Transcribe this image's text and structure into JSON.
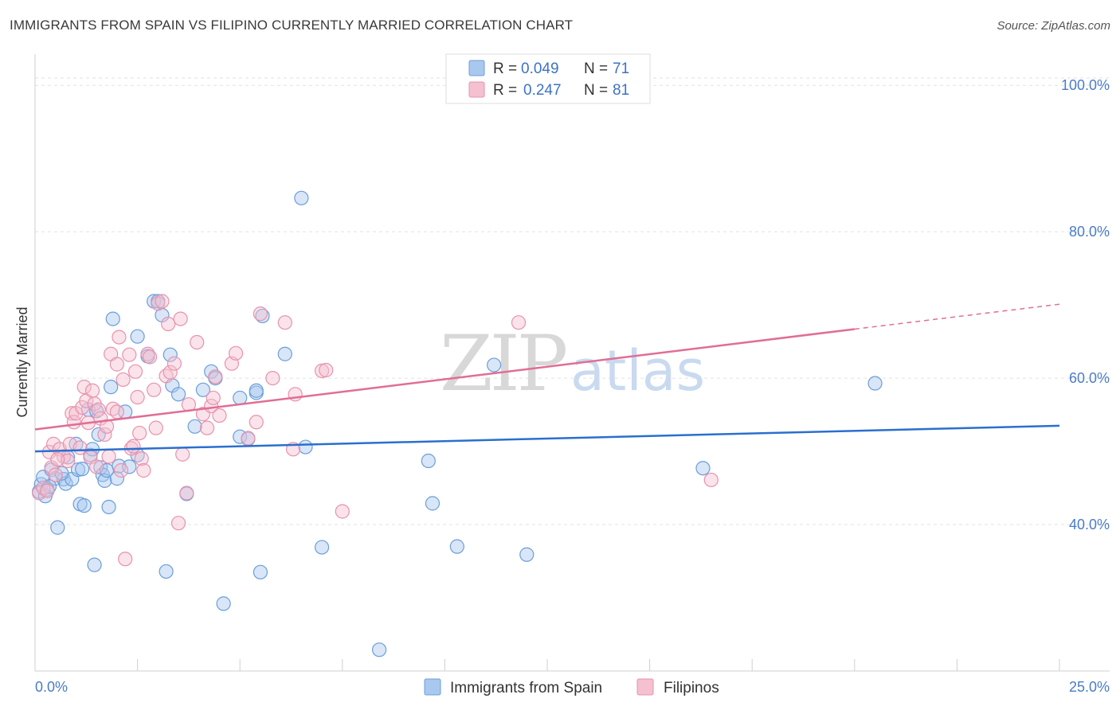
{
  "header": {
    "title": "IMMIGRANTS FROM SPAIN VS FILIPINO CURRENTLY MARRIED CORRELATION CHART",
    "source": "Source: ZipAtlas.com"
  },
  "legend": {
    "rows": [
      {
        "r_label": "R =",
        "r_value": "0.049",
        "n_label": "N =",
        "n_value": "71"
      },
      {
        "r_label": "R =",
        "r_value": "0.247",
        "n_label": "N =",
        "n_value": "81"
      }
    ]
  },
  "watermark": {
    "zip": "ZIP",
    "atlas": "atlas"
  },
  "colors": {
    "blue_fill": "#a9c8ef",
    "blue_stroke": "#6b9ed8",
    "blue_line": "#2a6fcf",
    "pink_fill": "#f5c0d0",
    "pink_stroke": "#e892ad",
    "pink_line": "#e06e95"
  },
  "chart_data": {
    "type": "scatter",
    "title": "IMMIGRANTS FROM SPAIN VS FILIPINO CURRENTLY MARRIED CORRELATION CHART",
    "xlabel": "",
    "ylabel": "Currently Married",
    "xlim": [
      0,
      25
    ],
    "ylim": [
      20,
      103.5
    ],
    "x_tick_labels": [
      "0.0%",
      "25.0%"
    ],
    "y_ticks": [
      40,
      60,
      80,
      100
    ],
    "y_tick_labels": [
      "40.0%",
      "60.0%",
      "80.0%",
      "100.0%"
    ],
    "grid": true,
    "legend_position": "top-center",
    "series": [
      {
        "name": "Immigrants from Spain",
        "color": "#6b9ed8",
        "trend": {
          "x": [
            0,
            25
          ],
          "y": [
            50.0,
            53.5
          ]
        },
        "points": [
          [
            0.1,
            44.5
          ],
          [
            0.15,
            45.5
          ],
          [
            0.2,
            46.5
          ],
          [
            0.3,
            44.8
          ],
          [
            0.4,
            47.5
          ],
          [
            0.5,
            46.3
          ],
          [
            0.55,
            39.6
          ],
          [
            0.7,
            46.2
          ],
          [
            0.75,
            45.6
          ],
          [
            0.8,
            49.2
          ],
          [
            0.9,
            46.2
          ],
          [
            1.0,
            51.0
          ],
          [
            1.05,
            47.5
          ],
          [
            1.1,
            42.8
          ],
          [
            1.2,
            42.6
          ],
          [
            1.3,
            55.7
          ],
          [
            1.35,
            49.5
          ],
          [
            1.4,
            50.3
          ],
          [
            1.45,
            34.5
          ],
          [
            1.5,
            55.5
          ],
          [
            1.55,
            52.3
          ],
          [
            1.6,
            47.8
          ],
          [
            1.65,
            46.8
          ],
          [
            1.7,
            46.0
          ],
          [
            1.75,
            47.4
          ],
          [
            1.8,
            42.4
          ],
          [
            1.85,
            58.8
          ],
          [
            1.9,
            68.1
          ],
          [
            2.0,
            46.3
          ],
          [
            2.05,
            48.0
          ],
          [
            2.2,
            55.4
          ],
          [
            2.5,
            49.5
          ],
          [
            2.5,
            65.7
          ],
          [
            2.75,
            63.0
          ],
          [
            2.9,
            70.5
          ],
          [
            3.0,
            70.5
          ],
          [
            3.1,
            68.6
          ],
          [
            3.2,
            33.6
          ],
          [
            3.3,
            63.2
          ],
          [
            3.35,
            59.0
          ],
          [
            3.5,
            57.8
          ],
          [
            3.7,
            44.2
          ],
          [
            3.9,
            53.4
          ],
          [
            4.1,
            58.4
          ],
          [
            4.3,
            60.9
          ],
          [
            4.4,
            60.0
          ],
          [
            4.6,
            29.2
          ],
          [
            5.0,
            57.3
          ],
          [
            5.0,
            52.0
          ],
          [
            5.2,
            51.7
          ],
          [
            5.4,
            58.0
          ],
          [
            5.4,
            58.3
          ],
          [
            5.5,
            33.5
          ],
          [
            5.55,
            68.5
          ],
          [
            6.1,
            63.3
          ],
          [
            6.5,
            84.6
          ],
          [
            6.6,
            50.6
          ],
          [
            7.0,
            36.9
          ],
          [
            8.4,
            22.9
          ],
          [
            9.6,
            48.7
          ],
          [
            9.7,
            42.9
          ],
          [
            10.3,
            37.0
          ],
          [
            11.2,
            61.8
          ],
          [
            12.0,
            35.9
          ],
          [
            16.3,
            47.7
          ],
          [
            20.5,
            59.3
          ],
          [
            0.25,
            43.9
          ],
          [
            0.65,
            47.0
          ],
          [
            2.3,
            47.9
          ],
          [
            1.15,
            47.6
          ],
          [
            0.35,
            45.2
          ]
        ]
      },
      {
        "name": "Filipinos",
        "color": "#e892ad",
        "trend": {
          "x": [
            0,
            20
          ],
          "y": [
            53.0,
            66.7
          ]
        },
        "trend_dashed": {
          "x": [
            20,
            25
          ],
          "y": [
            66.7,
            70.1
          ]
        },
        "points": [
          [
            0.1,
            44.3
          ],
          [
            0.2,
            45.0
          ],
          [
            0.3,
            44.6
          ],
          [
            0.35,
            49.9
          ],
          [
            0.4,
            47.8
          ],
          [
            0.45,
            51.0
          ],
          [
            0.5,
            46.8
          ],
          [
            0.6,
            50.3
          ],
          [
            0.7,
            49.3
          ],
          [
            0.8,
            48.7
          ],
          [
            0.85,
            51.0
          ],
          [
            0.9,
            55.2
          ],
          [
            0.95,
            54.0
          ],
          [
            1.0,
            55.2
          ],
          [
            1.1,
            50.5
          ],
          [
            1.15,
            56.0
          ],
          [
            1.2,
            58.8
          ],
          [
            1.25,
            56.9
          ],
          [
            1.3,
            53.9
          ],
          [
            1.35,
            49.2
          ],
          [
            1.4,
            58.3
          ],
          [
            1.45,
            56.5
          ],
          [
            1.5,
            47.9
          ],
          [
            1.55,
            55.7
          ],
          [
            1.6,
            54.5
          ],
          [
            1.7,
            52.3
          ],
          [
            1.75,
            53.4
          ],
          [
            1.8,
            49.3
          ],
          [
            1.85,
            63.3
          ],
          [
            1.9,
            55.8
          ],
          [
            2.0,
            55.4
          ],
          [
            2.0,
            61.9
          ],
          [
            2.05,
            65.6
          ],
          [
            2.1,
            47.4
          ],
          [
            2.15,
            59.8
          ],
          [
            2.2,
            35.3
          ],
          [
            2.3,
            63.2
          ],
          [
            2.35,
            50.4
          ],
          [
            2.4,
            50.7
          ],
          [
            2.45,
            60.9
          ],
          [
            2.5,
            57.4
          ],
          [
            2.55,
            52.5
          ],
          [
            2.6,
            49.0
          ],
          [
            2.65,
            47.4
          ],
          [
            2.75,
            63.3
          ],
          [
            2.8,
            62.9
          ],
          [
            2.9,
            58.4
          ],
          [
            2.95,
            53.2
          ],
          [
            3.0,
            70.2
          ],
          [
            3.1,
            70.5
          ],
          [
            3.2,
            60.3
          ],
          [
            3.25,
            67.4
          ],
          [
            3.3,
            60.8
          ],
          [
            3.4,
            62.0
          ],
          [
            3.5,
            40.2
          ],
          [
            3.55,
            68.1
          ],
          [
            3.6,
            49.6
          ],
          [
            3.7,
            44.3
          ],
          [
            3.75,
            56.4
          ],
          [
            3.95,
            64.9
          ],
          [
            4.1,
            55.1
          ],
          [
            4.2,
            53.2
          ],
          [
            4.3,
            56.2
          ],
          [
            4.4,
            60.2
          ],
          [
            4.5,
            54.9
          ],
          [
            4.8,
            62.0
          ],
          [
            4.9,
            63.4
          ],
          [
            5.2,
            51.8
          ],
          [
            5.4,
            54.0
          ],
          [
            5.5,
            68.8
          ],
          [
            5.8,
            60.0
          ],
          [
            6.1,
            67.6
          ],
          [
            6.3,
            50.3
          ],
          [
            6.35,
            57.8
          ],
          [
            7.0,
            61.0
          ],
          [
            7.1,
            61.1
          ],
          [
            7.5,
            41.8
          ],
          [
            11.8,
            67.6
          ],
          [
            16.5,
            46.1
          ],
          [
            4.35,
            57.3
          ],
          [
            0.55,
            48.9
          ]
        ]
      }
    ]
  },
  "bottom_legend": {
    "items": [
      {
        "label": "Immigrants from Spain"
      },
      {
        "label": "Filipinos"
      }
    ]
  }
}
